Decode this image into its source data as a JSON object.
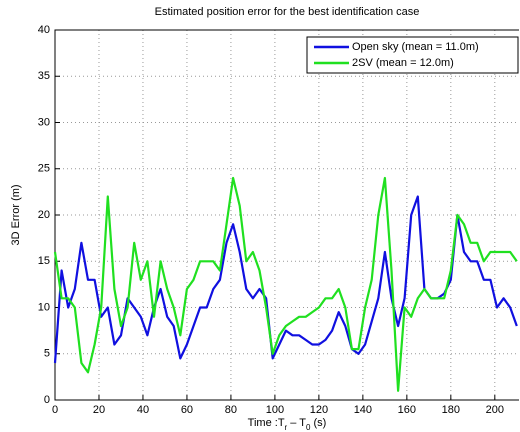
{
  "chart_data": {
    "type": "line",
    "title": "Estimated position error for the best identification case",
    "xlabel": [
      "Time :T",
      "r",
      " – T",
      "0",
      " (s)"
    ],
    "ylabel": "3D Error (m)",
    "x": [
      0,
      3,
      6,
      9,
      12,
      15,
      18,
      21,
      24,
      27,
      30,
      33,
      36,
      39,
      42,
      45,
      48,
      51,
      54,
      57,
      60,
      63,
      66,
      69,
      72,
      75,
      78,
      81,
      84,
      87,
      90,
      93,
      96,
      99,
      102,
      105,
      108,
      111,
      114,
      117,
      120,
      123,
      126,
      129,
      132,
      135,
      138,
      141,
      144,
      147,
      150,
      153,
      156,
      159,
      162,
      165,
      168,
      171,
      174,
      177,
      180,
      183,
      186,
      189,
      192,
      195,
      198,
      201,
      204,
      207,
      210
    ],
    "series": [
      {
        "name": "Open sky (mean = 11.0m)",
        "color": "#1010e0",
        "values": [
          4,
          14,
          10,
          12,
          17,
          13,
          13,
          9,
          10,
          6,
          7,
          11,
          10,
          9,
          7,
          10,
          12,
          9,
          8,
          4.5,
          6,
          8,
          10,
          10,
          12,
          13,
          17,
          19,
          16,
          12,
          11,
          12,
          11,
          4.5,
          6,
          7.5,
          7,
          7,
          6.5,
          6,
          6,
          6.5,
          7.5,
          9.5,
          8,
          5.5,
          5,
          6,
          8.5,
          11,
          16,
          11,
          8,
          11,
          20,
          22,
          12,
          11,
          11,
          11.5,
          13,
          20,
          16,
          15,
          15,
          13,
          13,
          10,
          11,
          10,
          8
        ]
      },
      {
        "name": "2SV (mean = 12.0m)",
        "color": "#20e020",
        "values": [
          16,
          11,
          11,
          10,
          4,
          3,
          6,
          10,
          22,
          12,
          8,
          10,
          17,
          13,
          15,
          9,
          15,
          12,
          10,
          7,
          12,
          13,
          15,
          15,
          15,
          14,
          19,
          24,
          21,
          15,
          16,
          14,
          10,
          5,
          7,
          8,
          8.5,
          9,
          9,
          9.5,
          10,
          11,
          11,
          12,
          10,
          5.5,
          5.5,
          10,
          13,
          20,
          24,
          14,
          1,
          10,
          9,
          11,
          12,
          11,
          11,
          11,
          14,
          20,
          19,
          17,
          17,
          15,
          16,
          16,
          16,
          16,
          15
        ]
      }
    ],
    "xlim": [
      0,
      211
    ],
    "ylim": [
      0,
      40
    ],
    "xticks": [
      0,
      20,
      40,
      60,
      80,
      100,
      120,
      140,
      160,
      180,
      200
    ],
    "yticks": [
      0,
      5,
      10,
      15,
      20,
      25,
      30,
      35,
      40
    ],
    "grid": true,
    "legend": "upper right"
  }
}
